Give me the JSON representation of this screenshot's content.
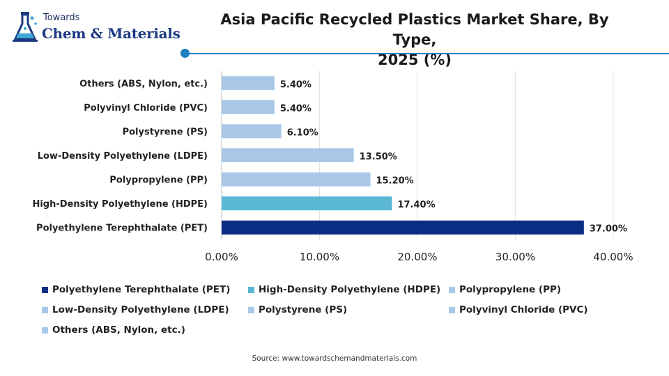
{
  "logo": {
    "top_text": "Towards",
    "main_text": "Chem & Materials"
  },
  "chart_data": {
    "type": "bar",
    "orientation": "horizontal",
    "title": "Asia Pacific Recycled Plastics Market Share, By Type, 2025 (%)",
    "title_lines": [
      "Asia Pacific Recycled Plastics Market Share, By Type,",
      "2025 (%)"
    ],
    "categories": [
      "Polyethylene Terephthalate (PET)",
      "High-Density Polyethylene (HDPE)",
      "Polypropylene (PP)",
      "Low-Density Polyethylene (LDPE)",
      "Polystyrene (PS)",
      "Polyvinyl Chloride (PVC)",
      "Others (ABS, Nylon, etc.)"
    ],
    "values": [
      37.0,
      17.4,
      15.2,
      13.5,
      6.1,
      5.4,
      5.4
    ],
    "value_labels": [
      "37.00%",
      "17.40%",
      "15.20%",
      "13.50%",
      "6.10%",
      "5.40%",
      "5.40%"
    ],
    "colors": [
      "#0b2e84",
      "#5bb8d5",
      "#a9c8e8",
      "#a9c8e8",
      "#a9c8e8",
      "#a9c8e8",
      "#a9c8e8"
    ],
    "xlim": [
      0,
      40
    ],
    "xticks": [
      0,
      10,
      20,
      30,
      40
    ],
    "xtick_labels": [
      "0.00%",
      "10.00%",
      "20.00%",
      "30.00%",
      "40.00%"
    ],
    "grid": true,
    "legend_position": "bottom",
    "xlabel": "",
    "ylabel": ""
  },
  "source": "Source: www.towardschemandmaterials.com"
}
